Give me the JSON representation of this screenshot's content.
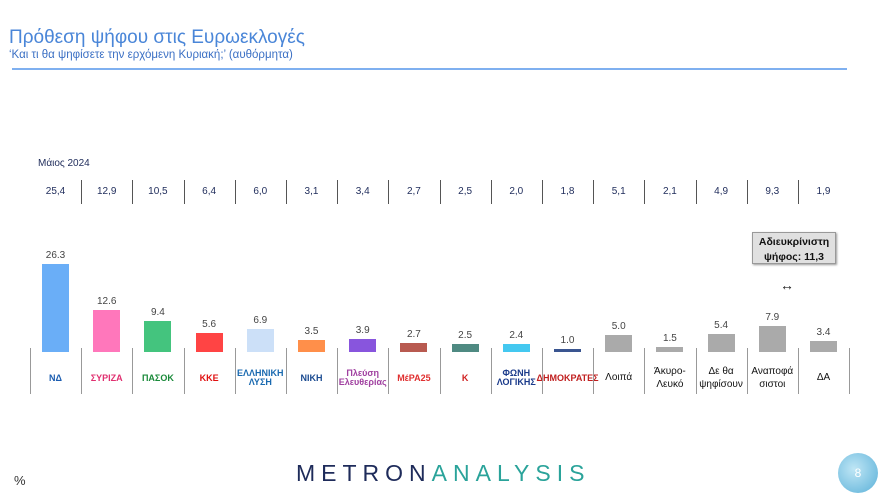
{
  "chart_data": {
    "type": "bar",
    "title": "Πρόθεση ψήφου στις Ευρωεκλογές",
    "subtitle": "‘Και τι θα ψηφίσετε την ερχόμενη Κυριακή;’ (αυθόρμητα)",
    "unit": "%",
    "categories": [
      "ΝΔ",
      "ΣΥΡΙΖΑ",
      "ΠΑΣΟΚ",
      "ΚΚΕ",
      "ΕΛΛΗΝΙΚΗ ΛΥΣΗ",
      "ΝΙΚΗ",
      "Πλεύση Ελευθερίας",
      "ΜέΡΑ25",
      "Κ",
      "ΦΩΝΗ ΛΟΓΙΚΗΣ",
      "ΔΗΜΟΚΡΑΤΕΣ",
      "Λοιπά",
      "Άκυρο-Λευκό",
      "Δε θα ψηφίσουν",
      "Αναποφά σιστοι",
      "ΔΑ"
    ],
    "category_is_logo": [
      true,
      true,
      true,
      true,
      true,
      true,
      true,
      true,
      true,
      true,
      true,
      false,
      false,
      false,
      false,
      false
    ],
    "values": [
      26.3,
      12.6,
      9.4,
      5.6,
      6.9,
      3.5,
      3.9,
      2.7,
      2.5,
      2.4,
      1.0,
      5.0,
      1.5,
      5.4,
      7.9,
      3.4
    ],
    "value_labels": [
      "26.3",
      "12.6",
      "9.4",
      "5.6",
      "6.9",
      "3.5",
      "3.9",
      "2.7",
      "2.5",
      "2.4",
      "1.0",
      "5.0",
      "1.5",
      "5.4",
      "7.9",
      "3.4"
    ],
    "colors": [
      "#6aaef7",
      "#ff77bb",
      "#44c47e",
      "#ff4444",
      "#cce0f8",
      "#ff8f4a",
      "#8855dd",
      "#b85a50",
      "#4f8a82",
      "#44c8f0",
      "#3a5590",
      "#aaaaaa",
      "#aaaaaa",
      "#aaaaaa",
      "#aaaaaa",
      "#aaaaaa"
    ],
    "logo_colors": [
      "#1a5cb0",
      "#e03070",
      "#1a8a3a",
      "#e01010",
      "#1a6ab0",
      "#1a4a90",
      "#a040a0",
      "#e03030",
      "#d02020",
      "#1a3a8a",
      "#c02020"
    ],
    "comparison": {
      "label": "Μάιος 2024",
      "values": [
        "25,4",
        "12,9",
        "10,5",
        "6,4",
        "6,0",
        "3,1",
        "3,4",
        "2,7",
        "2,5",
        "2,0",
        "1,8",
        "5,1",
        "2,1",
        "4,9",
        "9,3",
        "1,9"
      ]
    },
    "grid": false,
    "legend": "none"
  },
  "annotation": {
    "text_line1": "Αδιευκρίνιστη",
    "text_line2": "ψήφος: 11,3",
    "arrow": "↔"
  },
  "footer": {
    "unit": "%",
    "brand_part1": "METRON",
    "brand_part2": "ANALYSIS",
    "page": "8"
  }
}
